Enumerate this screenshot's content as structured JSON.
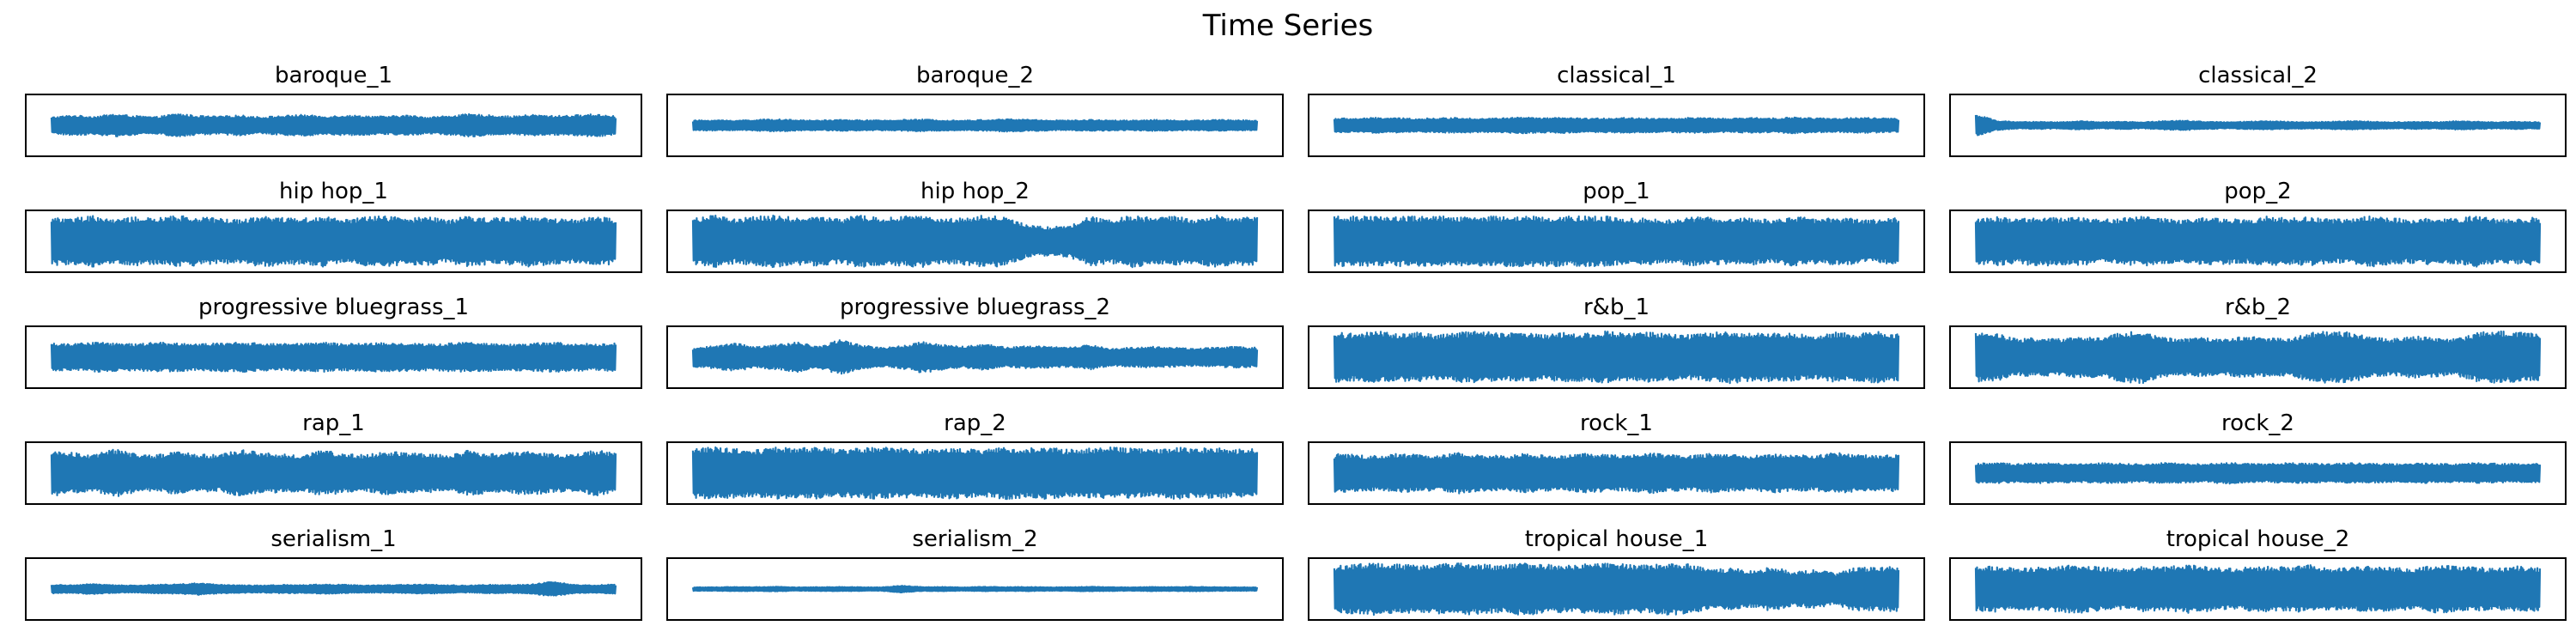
{
  "figure": {
    "title": "Time Series",
    "line_color": "#1f77b4",
    "frame_color": "#000000",
    "background": "#ffffff"
  },
  "chart_data": {
    "type": "line",
    "title": "Time Series",
    "grid": false,
    "legend": "none",
    "axis_ticks": "hidden",
    "series": [
      {
        "name": "baroque_1",
        "amplitude": 0.42,
        "envelope": [
          0.7,
          0.85,
          0.75,
          0.95,
          0.8,
          0.7,
          1.0,
          0.8,
          0.75,
          0.85,
          0.7,
          0.8,
          0.9,
          0.75,
          0.85,
          0.8,
          0.75,
          0.85,
          0.7,
          0.8,
          0.95,
          0.85,
          0.75,
          0.9,
          0.8,
          0.85,
          0.95,
          0.8
        ]
      },
      {
        "name": "baroque_2",
        "amplitude": 0.22,
        "envelope": [
          0.8,
          0.85,
          0.8,
          0.9,
          1.0,
          0.85,
          0.8,
          0.9,
          0.85,
          0.8,
          0.9,
          0.95,
          0.85,
          0.8,
          0.9,
          1.0,
          0.95,
          0.85,
          0.8,
          0.9,
          0.85,
          0.8,
          0.9,
          0.85,
          0.8,
          0.9,
          0.85,
          0.8
        ]
      },
      {
        "name": "classical_1",
        "amplitude": 0.3,
        "envelope": [
          0.85,
          0.8,
          0.9,
          0.85,
          0.8,
          0.85,
          0.9,
          0.8,
          0.85,
          0.95,
          0.85,
          0.9,
          0.8,
          0.85,
          0.9,
          0.85,
          0.8,
          0.9,
          0.85,
          0.8,
          0.9,
          0.85,
          0.95,
          0.85,
          0.8,
          0.9,
          0.85,
          0.8
        ]
      },
      {
        "name": "classical_2",
        "amplitude": 0.38,
        "envelope": [
          1.0,
          0.45,
          0.3,
          0.35,
          0.3,
          0.4,
          0.3,
          0.35,
          0.3,
          0.4,
          0.45,
          0.35,
          0.3,
          0.35,
          0.4,
          0.35,
          0.3,
          0.35,
          0.4,
          0.35,
          0.3,
          0.35,
          0.3,
          0.4,
          0.35,
          0.3,
          0.35,
          0.3
        ]
      },
      {
        "name": "hip hop_1",
        "amplitude": 0.9,
        "envelope": [
          0.95,
          0.9,
          1.0,
          0.85,
          0.95,
          0.9,
          1.0,
          0.95,
          0.9,
          0.85,
          1.0,
          0.95,
          0.9,
          1.0,
          0.85,
          0.95,
          1.0,
          0.9,
          0.95,
          0.85,
          1.0,
          0.9,
          0.95,
          1.0,
          0.9,
          0.85,
          0.95,
          0.9
        ]
      },
      {
        "name": "hip hop_2",
        "amplitude": 0.92,
        "envelope": [
          0.9,
          1.0,
          0.85,
          0.95,
          1.0,
          0.9,
          0.95,
          0.85,
          1.0,
          0.9,
          0.95,
          1.0,
          0.85,
          0.9,
          1.0,
          0.95,
          0.6,
          0.55,
          0.6,
          0.95,
          0.85,
          1.0,
          0.9,
          0.95,
          0.85,
          1.0,
          0.9,
          0.95
        ]
      },
      {
        "name": "pop_1",
        "amplitude": 0.88,
        "envelope": [
          1.0,
          1.0,
          1.0,
          1.0,
          1.0,
          1.0,
          1.0,
          1.0,
          1.0,
          1.0,
          1.0,
          1.0,
          1.0,
          1.0,
          0.9,
          0.95,
          0.85,
          1.0,
          0.95,
          0.9,
          0.95,
          0.85,
          1.0,
          0.9,
          0.95,
          0.9,
          0.85,
          0.95
        ]
      },
      {
        "name": "pop_2",
        "amplitude": 0.9,
        "envelope": [
          0.9,
          0.95,
          0.85,
          1.0,
          0.9,
          0.95,
          0.85,
          0.9,
          1.0,
          0.9,
          0.85,
          0.95,
          0.9,
          0.85,
          1.0,
          0.9,
          0.95,
          0.85,
          0.9,
          1.0,
          0.9,
          0.85,
          0.95,
          0.9,
          1.0,
          0.85,
          0.9,
          0.95
        ]
      },
      {
        "name": "progressive bluegrass_1",
        "amplitude": 0.55,
        "envelope": [
          0.9,
          0.85,
          0.95,
          0.9,
          0.85,
          0.95,
          0.9,
          0.85,
          0.9,
          0.95,
          0.9,
          0.85,
          0.9,
          0.95,
          0.85,
          0.9,
          0.95,
          0.9,
          0.85,
          0.9,
          0.95,
          0.9,
          0.85,
          0.9,
          0.95,
          0.9,
          0.85,
          0.9
        ]
      },
      {
        "name": "progressive bluegrass_2",
        "amplitude": 0.62,
        "envelope": [
          0.55,
          0.65,
          0.8,
          0.6,
          0.7,
          0.85,
          0.6,
          1.0,
          0.7,
          0.55,
          0.65,
          0.9,
          0.7,
          0.6,
          0.75,
          0.55,
          0.65,
          0.6,
          0.55,
          0.7,
          0.5,
          0.55,
          0.6,
          0.55,
          0.5,
          0.55,
          0.6,
          0.55
        ]
      },
      {
        "name": "r&b_1",
        "amplitude": 0.92,
        "envelope": [
          0.95,
          0.9,
          1.0,
          0.9,
          0.95,
          0.85,
          0.95,
          1.0,
          0.9,
          0.95,
          0.85,
          0.95,
          0.9,
          1.0,
          0.9,
          0.95,
          0.9,
          0.85,
          0.95,
          1.0,
          0.9,
          0.95,
          0.9,
          0.85,
          0.95,
          0.9,
          1.0,
          0.9
        ]
      },
      {
        "name": "r&b_2",
        "amplitude": 0.92,
        "envelope": [
          0.95,
          0.9,
          0.7,
          0.75,
          0.7,
          0.8,
          0.75,
          0.95,
          1.0,
          0.75,
          0.7,
          0.75,
          0.7,
          0.8,
          0.75,
          0.7,
          0.95,
          1.0,
          0.95,
          0.75,
          0.7,
          0.8,
          0.75,
          0.7,
          0.95,
          1.0,
          0.95,
          0.9
        ]
      },
      {
        "name": "rap_1",
        "amplitude": 0.85,
        "envelope": [
          0.95,
          0.85,
          0.75,
          1.0,
          0.8,
          0.75,
          0.9,
          0.8,
          0.75,
          1.0,
          0.85,
          0.8,
          0.75,
          0.95,
          0.8,
          0.75,
          0.9,
          0.85,
          0.8,
          0.75,
          0.95,
          0.8,
          0.85,
          0.9,
          0.8,
          0.75,
          0.95,
          0.85
        ]
      },
      {
        "name": "rap_2",
        "amplitude": 0.92,
        "envelope": [
          0.95,
          1.0,
          0.95,
          0.9,
          1.0,
          0.95,
          1.0,
          0.9,
          0.95,
          1.0,
          0.95,
          0.9,
          1.0,
          0.95,
          0.9,
          1.0,
          0.95,
          1.0,
          0.9,
          0.95,
          1.0,
          0.95,
          0.9,
          1.0,
          0.95,
          1.0,
          0.9,
          0.95
        ]
      },
      {
        "name": "rock_1",
        "amplitude": 0.72,
        "envelope": [
          0.95,
          0.9,
          0.85,
          0.95,
          0.9,
          0.85,
          1.0,
          0.9,
          0.85,
          0.95,
          0.9,
          0.85,
          0.95,
          0.9,
          0.85,
          1.0,
          0.9,
          0.85,
          0.95,
          0.9,
          0.85,
          0.95,
          0.9,
          0.85,
          1.0,
          0.9,
          0.85,
          0.9
        ]
      },
      {
        "name": "rock_2",
        "amplitude": 0.4,
        "envelope": [
          0.85,
          0.9,
          0.8,
          0.9,
          0.85,
          0.8,
          0.9,
          0.85,
          0.8,
          0.9,
          0.85,
          0.8,
          0.95,
          0.85,
          0.8,
          0.9,
          0.85,
          0.8,
          0.9,
          0.85,
          0.8,
          0.9,
          0.85,
          0.8,
          0.9,
          0.85,
          0.8,
          0.85
        ]
      },
      {
        "name": "serialism_1",
        "amplitude": 0.28,
        "envelope": [
          0.55,
          0.5,
          0.65,
          0.5,
          0.45,
          0.55,
          0.6,
          0.75,
          0.55,
          0.5,
          0.45,
          0.55,
          0.5,
          0.6,
          0.55,
          0.45,
          0.5,
          0.55,
          0.6,
          0.5,
          0.45,
          0.55,
          0.5,
          0.6,
          0.95,
          0.55,
          0.5,
          0.6
        ]
      },
      {
        "name": "serialism_2",
        "amplitude": 0.14,
        "envelope": [
          0.5,
          0.45,
          0.55,
          0.5,
          0.6,
          0.45,
          0.5,
          0.55,
          0.5,
          0.45,
          0.9,
          0.5,
          0.55,
          0.45,
          0.6,
          0.5,
          0.55,
          0.45,
          0.5,
          0.6,
          0.5,
          0.45,
          0.55,
          0.5,
          0.6,
          0.5,
          0.45,
          0.5
        ]
      },
      {
        "name": "tropical house_1",
        "amplitude": 0.92,
        "envelope": [
          0.9,
          0.95,
          1.0,
          0.95,
          0.9,
          0.95,
          1.0,
          0.95,
          0.9,
          1.0,
          0.95,
          0.9,
          0.95,
          1.0,
          0.95,
          0.9,
          1.0,
          0.95,
          0.75,
          0.8,
          0.7,
          0.85,
          0.65,
          0.75,
          0.6,
          0.85,
          0.8,
          0.9
        ]
      },
      {
        "name": "tropical house_2",
        "amplitude": 0.85,
        "envelope": [
          0.9,
          0.95,
          0.85,
          0.9,
          0.95,
          1.0,
          0.9,
          0.85,
          0.95,
          0.9,
          1.0,
          0.95,
          0.85,
          0.9,
          0.95,
          0.9,
          1.0,
          0.85,
          0.9,
          0.95,
          0.9,
          0.85,
          1.0,
          0.95,
          0.9,
          0.85,
          0.95,
          0.9
        ]
      }
    ]
  }
}
